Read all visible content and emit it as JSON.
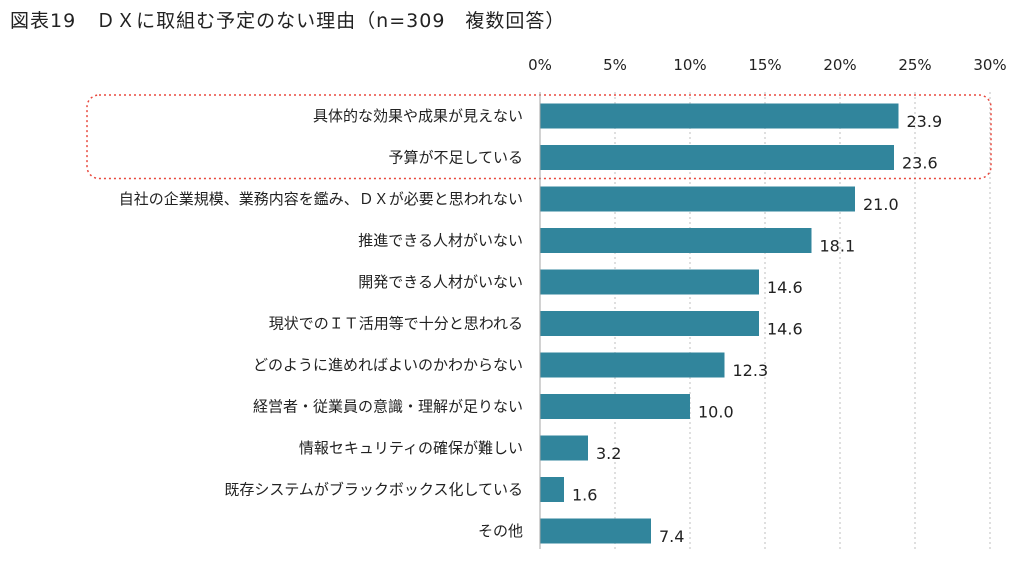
{
  "chart_data": {
    "type": "bar",
    "orientation": "horizontal",
    "title": "図表19　ＤＸに取組む予定のない理由（n=309　複数回答）",
    "categories": [
      "具体的な効果や成果が見えない",
      "予算が不足している",
      "自社の企業規模、業務内容を鑑み、ＤＸが必要と思われない",
      "推進できる人材がいない",
      "開発できる人材がいない",
      "現状でのＩＴ活用等で十分と思われる",
      "どのように進めればよいのかわからない",
      "経営者・従業員の意識・理解が足りない",
      "情報セキュリティの確保が難しい",
      "既存システムがブラックボックス化している",
      "その他"
    ],
    "values": [
      23.9,
      23.6,
      21.0,
      18.1,
      14.6,
      14.6,
      12.3,
      10.0,
      3.2,
      1.6,
      7.4
    ],
    "value_labels": [
      "23.9",
      "23.6",
      "21.0",
      "18.1",
      "14.6",
      "14.6",
      "12.3",
      "10.0",
      "3.2",
      "1.6",
      "7.4"
    ],
    "xlim": [
      0,
      30
    ],
    "x_ticks": [
      0,
      5,
      10,
      15,
      20,
      25,
      30
    ],
    "x_tick_labels": [
      "0%",
      "5%",
      "10%",
      "15%",
      "20%",
      "25%",
      "30%"
    ],
    "axis_position": "top",
    "grid": "vertical dotted",
    "highlight": "first two categories enclosed in a dotted box",
    "bar_color": "#31859c",
    "highlight_color": "#e8493e"
  }
}
